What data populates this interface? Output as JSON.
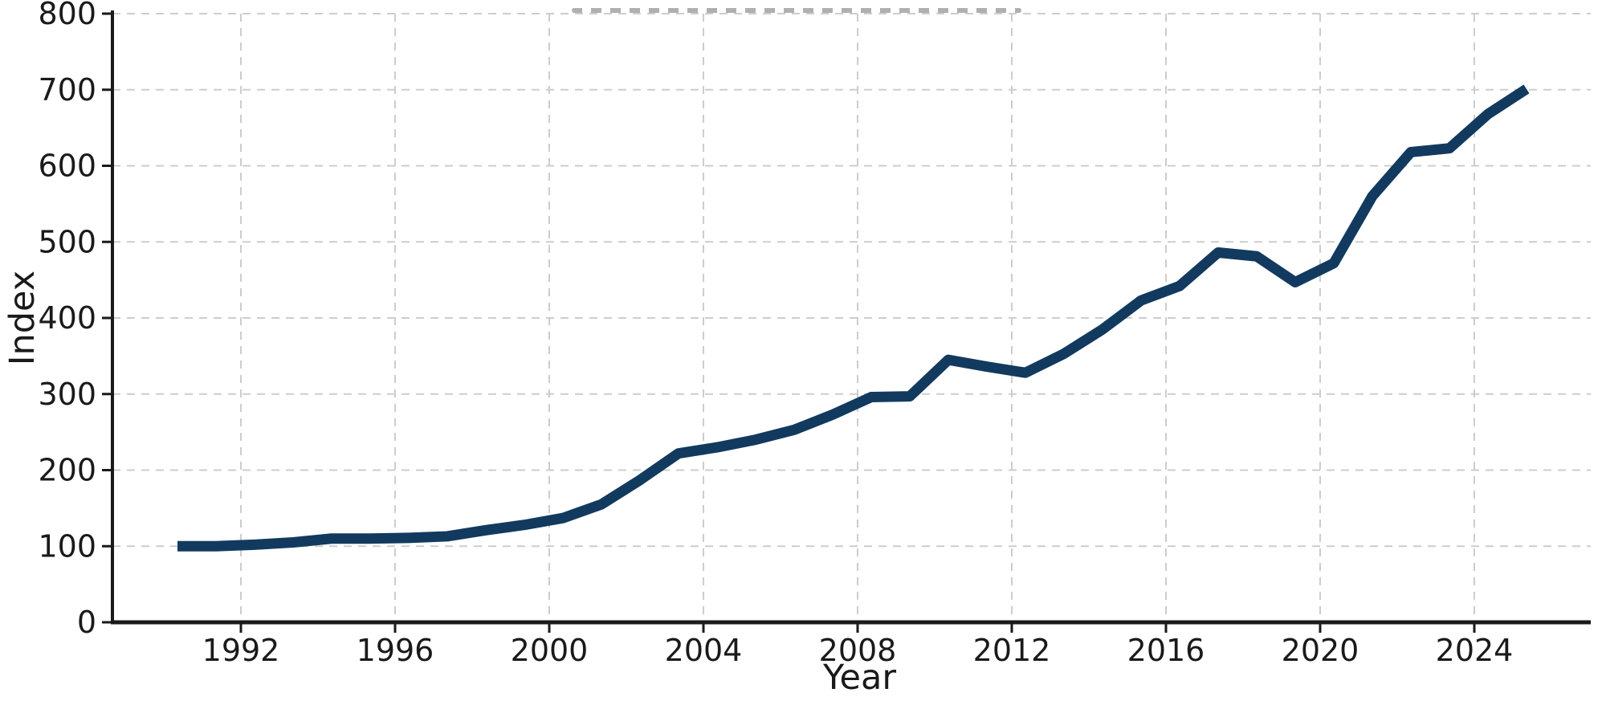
{
  "figure": {
    "background": "#ffffff",
    "axis_color": "#1a1a1a",
    "grid_color": "#cdcdcd"
  },
  "chart_data": {
    "type": "line",
    "title": "",
    "xlabel": "Year",
    "ylabel": "Index",
    "x": [
      1990,
      1991,
      1992,
      1993,
      1994,
      1995,
      1996,
      1997,
      1998,
      1999,
      2000,
      2001,
      2002,
      2003,
      2004,
      2005,
      2006,
      2007,
      2008,
      2009,
      2010,
      2011,
      2012,
      2013,
      2014,
      2015,
      2016,
      2017,
      2018,
      2019,
      2020,
      2021,
      2022,
      2023,
      2024,
      2025
    ],
    "series": [
      {
        "name": "Index",
        "color": "#123a5f",
        "values": [
          100,
          100,
          102,
          105,
          110,
          110,
          111,
          113,
          121,
          128,
          137,
          155,
          187,
          222,
          230,
          240,
          253,
          273,
          296,
          297,
          345,
          336,
          328,
          353,
          385,
          423,
          442,
          486,
          481,
          447,
          472,
          560,
          618,
          623,
          668,
          701
        ]
      }
    ],
    "xticks": [
      1992,
      1996,
      2000,
      2004,
      2008,
      2012,
      2016,
      2020,
      2024
    ],
    "yticks": [
      0,
      100,
      200,
      300,
      400,
      500,
      600,
      700,
      800
    ],
    "xlim": [
      1988.7,
      2027.0
    ],
    "ylim": [
      0,
      800
    ],
    "grid": true,
    "grid_style": "dashed",
    "legend_position": "none",
    "line_width": 13
  }
}
